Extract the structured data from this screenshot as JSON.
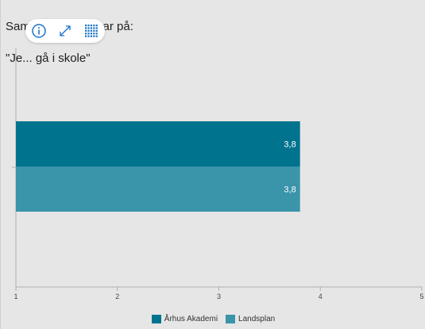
{
  "title_line1": "Samlet indikatorsvar på:",
  "title_line2": "\"Je... gå i skole\"",
  "toolbar": {
    "info_icon": "info-icon",
    "expand_icon": "expand-icon",
    "table_icon": "grid-icon"
  },
  "colors": {
    "series1": "#00738f",
    "series2": "#3a94aa",
    "axis": "#b0b0b0",
    "label": "#ffffff"
  },
  "chart_data": {
    "type": "bar",
    "orientation": "horizontal",
    "categories": [
      ""
    ],
    "series": [
      {
        "name": "Århus Akademi",
        "values": [
          3.8
        ],
        "label": "3,8"
      },
      {
        "name": "Landsplan",
        "values": [
          3.8
        ],
        "label": "3,8"
      }
    ],
    "xlim": [
      1,
      5
    ],
    "xticks": [
      "1",
      "2",
      "3",
      "4",
      "5"
    ],
    "legend_position": "bottom"
  }
}
